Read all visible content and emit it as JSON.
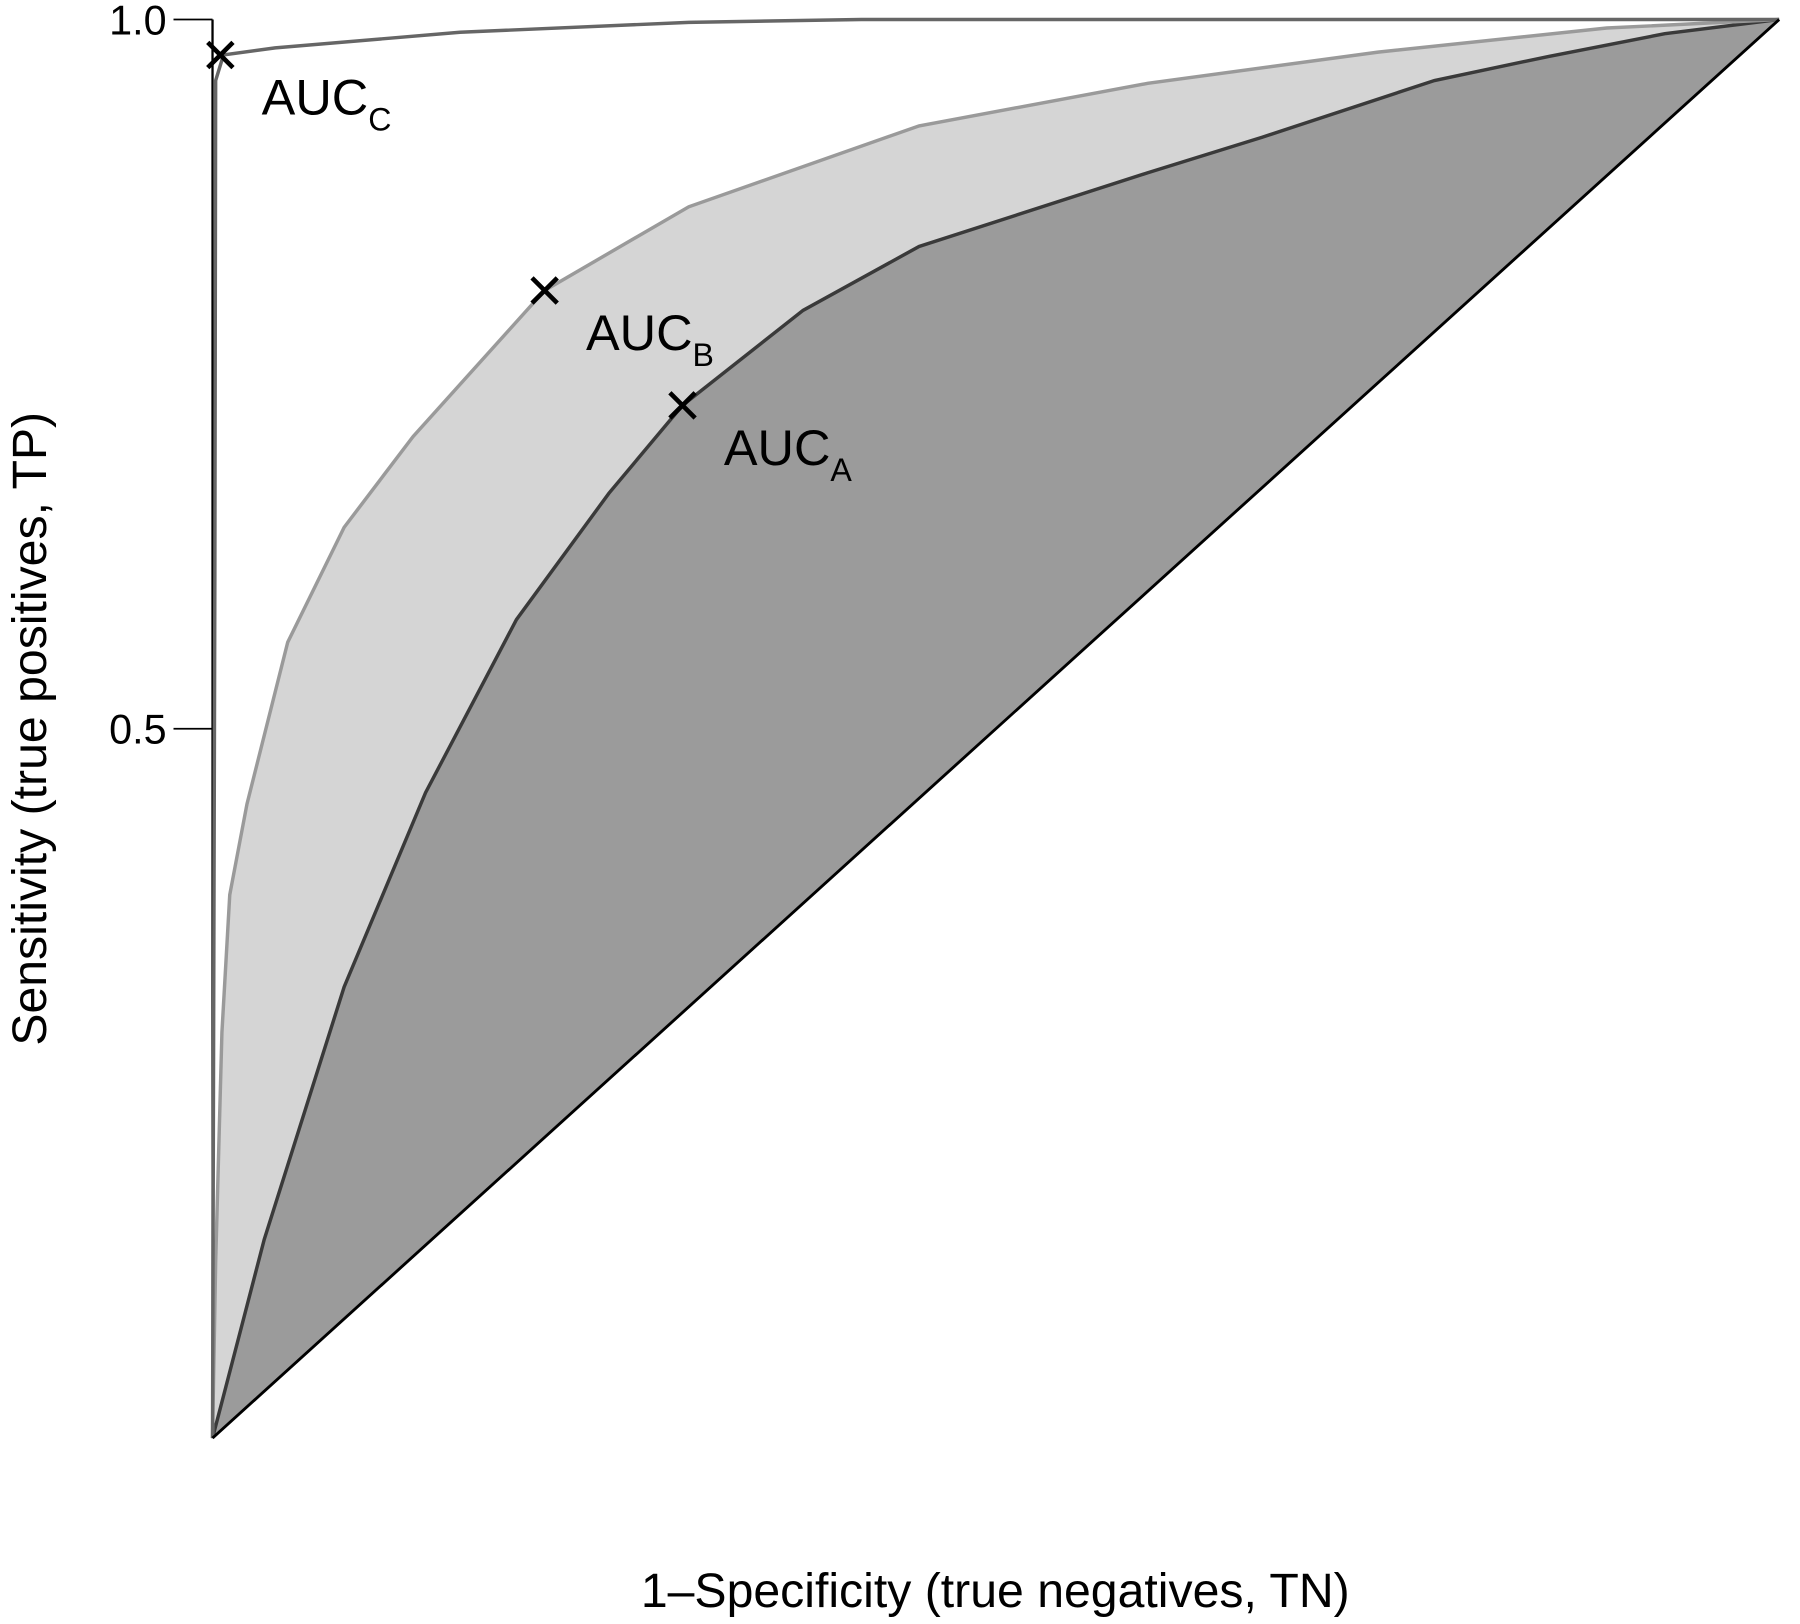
{
  "chart_data": {
    "type": "line",
    "xlabel": "1–Specificity (true negatives, TN)",
    "ylabel": "Sensitivity (true positives, TP)",
    "xlim": [
      0,
      1
    ],
    "ylim": [
      0,
      1
    ],
    "yticks": [
      0.5,
      {
        "value": 1,
        "label": "1.0"
      }
    ],
    "series": [
      {
        "color": "#3a3a3a",
        "fill": "#9b9b9b",
        "x": [
          0,
          0.033,
          0.084,
          0.136,
          0.194,
          0.253,
          0.3,
          0.377,
          0.451,
          0.597,
          0.67,
          0.78,
          0.853,
          0.927,
          1
        ],
        "values": [
          0,
          0.14,
          0.318,
          0.455,
          0.577,
          0.666,
          0.728,
          0.795,
          0.84,
          0.892,
          0.917,
          0.957,
          0.974,
          0.99,
          1
        ]
      },
      {
        "color": "#9a9a9a",
        "fill": "#d5d5d5",
        "x": [
          0,
          0.002,
          0.006,
          0.011,
          0.022,
          0.048,
          0.084,
          0.128,
          0.212,
          0.304,
          0.451,
          0.597,
          0.744,
          0.89,
          1
        ],
        "values": [
          0,
          0.124,
          0.286,
          0.383,
          0.447,
          0.561,
          0.642,
          0.706,
          0.809,
          0.868,
          0.925,
          0.955,
          0.977,
          0.994,
          1
        ]
      },
      {
        "color": "#666666",
        "x": [
          0,
          0.0015,
          0.002,
          0.007,
          0.04,
          0.158,
          0.304,
          0.414,
          1
        ],
        "values": [
          0,
          0.609,
          0.957,
          0.975,
          0.98,
          0.991,
          0.998,
          1,
          1
        ]
      },
      {
        "color": "#000000",
        "x": [
          0,
          1
        ],
        "values": [
          0,
          1
        ]
      }
    ],
    "annotations": [
      {
        "text": "AUC",
        "subscript": "A",
        "x": 0.3,
        "y": 0.728
      },
      {
        "text": "AUC",
        "subscript": "B",
        "x": 0.212,
        "y": 0.809
      },
      {
        "text": "AUC",
        "subscript": "C",
        "x": 0.005,
        "y": 0.975
      }
    ]
  }
}
